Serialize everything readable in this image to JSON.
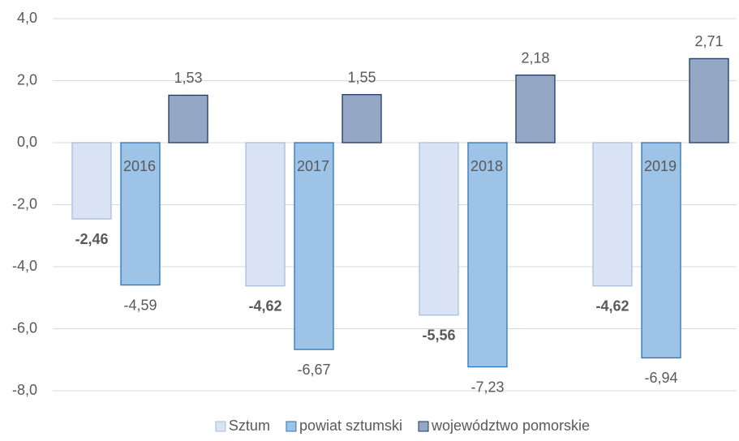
{
  "chart_data": {
    "type": "bar",
    "categories": [
      "2016",
      "2017",
      "2018",
      "2019"
    ],
    "series": [
      {
        "name": "Sztum",
        "color": "#dae3f3",
        "edgecolor": "#a9bcdd",
        "values": [
          -2.46,
          -4.62,
          -5.56,
          -4.62
        ],
        "value_labels": [
          "-2,46",
          "-4,62",
          "-5,56",
          "-4,62"
        ],
        "label_bold": true
      },
      {
        "name": "powiat sztumski",
        "color": "#9dc3e6",
        "edgecolor": "#2e75b6",
        "values": [
          -4.59,
          -6.67,
          -7.23,
          -6.94
        ],
        "value_labels": [
          "-4,59",
          "-6,67",
          "-7,23",
          "-6,94"
        ],
        "label_bold": false
      },
      {
        "name": "województwo pomorskie",
        "color": "#94a8c6",
        "edgecolor": "#1f3864",
        "values": [
          1.53,
          1.55,
          2.18,
          2.71
        ],
        "value_labels": [
          "1,53",
          "1,55",
          "2,18",
          "2,71"
        ],
        "label_bold": false
      }
    ],
    "ylim": [
      -8,
      4
    ],
    "yticks": [
      {
        "value": 4,
        "label": "4,0"
      },
      {
        "value": 2,
        "label": "2,0"
      },
      {
        "value": 0,
        "label": "0,0"
      },
      {
        "value": -2,
        "label": "-2,0"
      },
      {
        "value": -4,
        "label": "-4,0"
      },
      {
        "value": -6,
        "label": "-6,0"
      },
      {
        "value": -8,
        "label": "-8,0"
      }
    ],
    "grid": true,
    "legend": "bottom"
  }
}
